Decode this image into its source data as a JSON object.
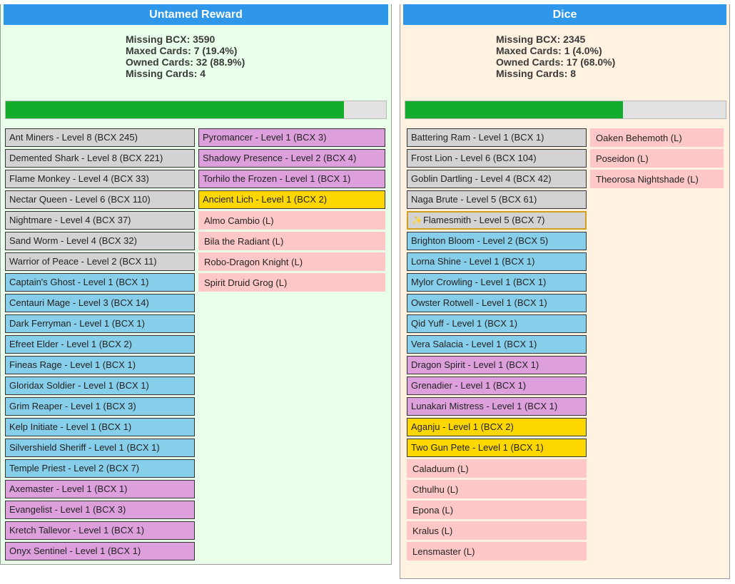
{
  "panels": [
    {
      "title": "Untamed Reward",
      "stats": {
        "missing_bcx": "Missing BCX: 3590",
        "maxed_cards": "Maxed Cards: 7 (19.4%)",
        "owned_cards": "Owned Cards: 32 (88.9%)",
        "missing_cards": "Missing Cards: 4"
      },
      "progress_fraction": 0.889,
      "columns": [
        [
          {
            "label": "Ant Miners - Level 8 (BCX 245)",
            "rarity": "gray"
          },
          {
            "label": "Demented Shark - Level 8 (BCX 221)",
            "rarity": "gray"
          },
          {
            "label": "Flame Monkey - Level 4 (BCX 33)",
            "rarity": "gray"
          },
          {
            "label": "Nectar Queen - Level 6 (BCX 110)",
            "rarity": "gray"
          },
          {
            "label": "Nightmare - Level 4 (BCX 37)",
            "rarity": "gray"
          },
          {
            "label": "Sand Worm - Level 4 (BCX 32)",
            "rarity": "gray"
          },
          {
            "label": "Warrior of Peace - Level 2 (BCX 11)",
            "rarity": "gray"
          },
          {
            "label": "Captain's Ghost - Level 1 (BCX 1)",
            "rarity": "blue"
          },
          {
            "label": "Centauri Mage - Level 3 (BCX 14)",
            "rarity": "blue"
          },
          {
            "label": "Dark Ferryman - Level 1 (BCX 1)",
            "rarity": "blue"
          },
          {
            "label": "Efreet Elder - Level 1 (BCX 2)",
            "rarity": "blue"
          },
          {
            "label": "Fineas Rage - Level 1 (BCX 1)",
            "rarity": "blue"
          },
          {
            "label": "Gloridax Soldier - Level 1 (BCX 1)",
            "rarity": "blue"
          },
          {
            "label": "Grim Reaper - Level 1 (BCX 3)",
            "rarity": "blue"
          },
          {
            "label": "Kelp Initiate - Level 1 (BCX 1)",
            "rarity": "blue"
          },
          {
            "label": "Silvershield Sheriff - Level 1 (BCX 1)",
            "rarity": "blue"
          },
          {
            "label": "Temple Priest - Level 2 (BCX 7)",
            "rarity": "blue"
          },
          {
            "label": "Axemaster - Level 1 (BCX 1)",
            "rarity": "purple"
          },
          {
            "label": "Evangelist - Level 1 (BCX 3)",
            "rarity": "purple"
          },
          {
            "label": "Kretch Tallevor - Level 1 (BCX 1)",
            "rarity": "purple"
          },
          {
            "label": "Onyx Sentinel - Level 1 (BCX 1)",
            "rarity": "purple"
          }
        ],
        [
          {
            "label": "Pyromancer - Level 1 (BCX 3)",
            "rarity": "purple"
          },
          {
            "label": "Shadowy Presence - Level 2 (BCX 4)",
            "rarity": "purple"
          },
          {
            "label": "Torhilo the Frozen - Level 1 (BCX 1)",
            "rarity": "purple"
          },
          {
            "label": "Ancient Lich - Level 1 (BCX 2)",
            "rarity": "gold"
          },
          {
            "label": "Almo Cambio (L)",
            "rarity": "pink"
          },
          {
            "label": "Bila the Radiant (L)",
            "rarity": "pink"
          },
          {
            "label": "Robo-Dragon Knight (L)",
            "rarity": "pink"
          },
          {
            "label": "Spirit Druid Grog (L)",
            "rarity": "pink"
          }
        ]
      ]
    },
    {
      "title": "Dice",
      "stats": {
        "missing_bcx": "Missing BCX: 2345",
        "maxed_cards": "Maxed Cards: 1 (4.0%)",
        "owned_cards": "Owned Cards: 17 (68.0%)",
        "missing_cards": "Missing Cards: 8"
      },
      "progress_fraction": 0.68,
      "columns": [
        [
          {
            "label": "Battering Ram - Level 1 (BCX 1)",
            "rarity": "gray"
          },
          {
            "label": "Frost Lion - Level 6 (BCX 104)",
            "rarity": "gray"
          },
          {
            "label": "Goblin Dartling - Level 4 (BCX 42)",
            "rarity": "gray"
          },
          {
            "label": "Naga Brute - Level 5 (BCX 61)",
            "rarity": "gray"
          },
          {
            "label": "Flamesmith - Level 5 (BCX 7)",
            "rarity": "gray",
            "selected": true,
            "icon": "sparkle-icon",
            "glyph": "✨"
          },
          {
            "label": "Brighton Bloom - Level 2 (BCX 5)",
            "rarity": "blue"
          },
          {
            "label": "Lorna Shine - Level 1 (BCX 1)",
            "rarity": "blue"
          },
          {
            "label": "Mylor Crowling - Level 1 (BCX 1)",
            "rarity": "blue"
          },
          {
            "label": "Owster Rotwell - Level 1 (BCX 1)",
            "rarity": "blue"
          },
          {
            "label": "Qid Yuff - Level 1 (BCX 1)",
            "rarity": "blue"
          },
          {
            "label": "Vera Salacia - Level 1 (BCX 1)",
            "rarity": "blue"
          },
          {
            "label": "Dragon Spirit - Level 1 (BCX 1)",
            "rarity": "purple"
          },
          {
            "label": "Grenadier - Level 1 (BCX 1)",
            "rarity": "purple"
          },
          {
            "label": "Lunakari Mistress - Level 1 (BCX 1)",
            "rarity": "purple"
          },
          {
            "label": "Aganju - Level 1 (BCX 2)",
            "rarity": "gold"
          },
          {
            "label": "Two Gun Pete - Level 1 (BCX 1)",
            "rarity": "gold"
          },
          {
            "label": "Caladuum (L)",
            "rarity": "pink"
          },
          {
            "label": "Cthulhu (L)",
            "rarity": "pink"
          },
          {
            "label": "Epona (L)",
            "rarity": "pink"
          },
          {
            "label": "Kralus (L)",
            "rarity": "pink"
          },
          {
            "label": "Lensmaster (L)",
            "rarity": "pink"
          }
        ],
        [
          {
            "label": "Oaken Behemoth (L)",
            "rarity": "pink"
          },
          {
            "label": "Poseidon (L)",
            "rarity": "pink"
          },
          {
            "label": "Theorosa Nightshade (L)",
            "rarity": "pink"
          }
        ]
      ]
    }
  ],
  "colors": {
    "header": "#2e97ea",
    "progress_fill": "#13ad2d",
    "progress_track": "#e2e2e2",
    "panel_left_bg": "#e9ffe9",
    "panel_right_bg": "#fff2e1",
    "rarity_gray": "#d3d3d3",
    "rarity_blue": "#87ceea",
    "rarity_purple": "#dda0dd",
    "rarity_gold": "#ffd700",
    "missing_pink": "#ffc8c8",
    "selected_border": "#d29e1d"
  }
}
